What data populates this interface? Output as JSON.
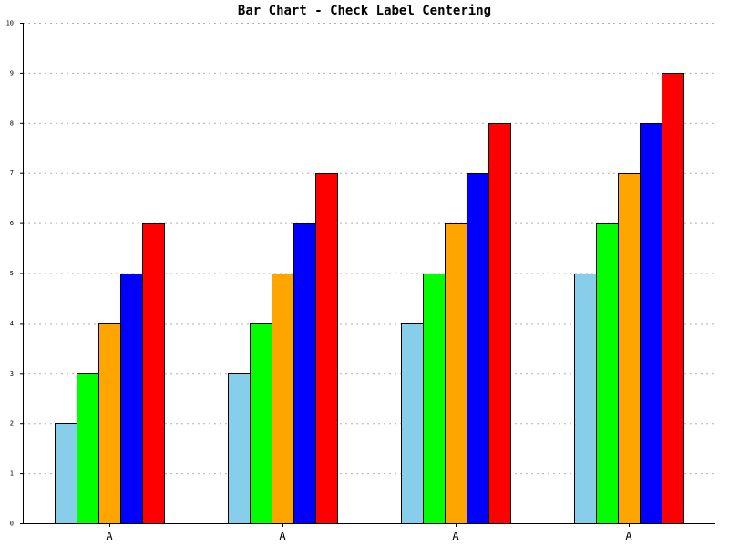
{
  "chart_data": {
    "type": "bar",
    "title": "Bar Chart - Check Label Centering",
    "xlabel": "",
    "ylabel": "",
    "ylim": [
      0,
      10
    ],
    "y_ticks": [
      0,
      1,
      2,
      3,
      4,
      5,
      6,
      7,
      8,
      9,
      10
    ],
    "grid": "horizontal dotted",
    "legend": "none",
    "categories": [
      "A",
      "A",
      "A",
      "A"
    ],
    "series": [
      {
        "color": "#87ceeb",
        "values": [
          2,
          3,
          4,
          5
        ]
      },
      {
        "color": "#00ff00",
        "values": [
          3,
          4,
          5,
          6
        ]
      },
      {
        "color": "#ffa500",
        "values": [
          4,
          5,
          6,
          7
        ]
      },
      {
        "color": "#0000ff",
        "values": [
          5,
          6,
          7,
          8
        ]
      },
      {
        "color": "#ff0000",
        "values": [
          6,
          7,
          8,
          9
        ]
      }
    ]
  }
}
